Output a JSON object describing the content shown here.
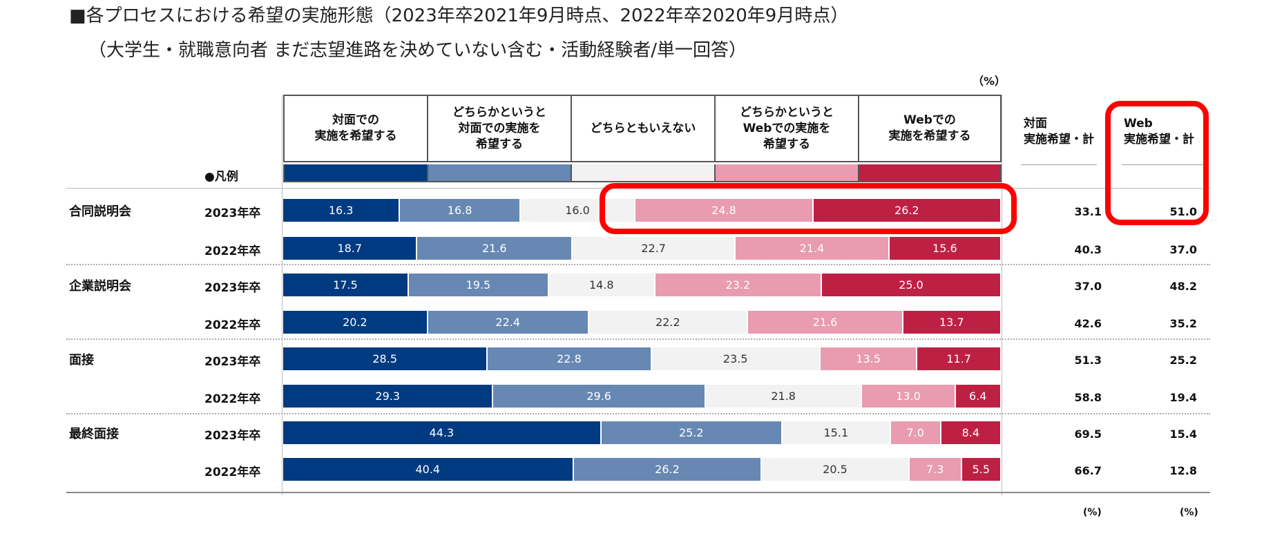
{
  "title": "■各プロセスにおける希望の実施形態（2023年卒2021年9月時点、2022年卒2020年9月時点）",
  "subtitle": "（大学生・就職意向者 まだ志望進路を決めていない含む・活動経験者/単一回答）",
  "unit_label": "（%）",
  "legend_label": "●凡例",
  "totals_headers": [
    "対面\n実施希望・計",
    "Web\n実施希望・計"
  ],
  "bottom_units": [
    "(%)",
    "(%)"
  ],
  "colors": {
    "face_to_face": "#003a80",
    "rather_face": "#6688b3",
    "neutral": "#f2f2f2",
    "rather_web": "#e99bb0",
    "web": "#be2044",
    "highlight": "#ff0000"
  },
  "chart_data": {
    "type": "bar",
    "stacked": "100%",
    "orientation": "horizontal",
    "title": "各プロセスにおける希望の実施形態（2023年卒2021年9月時点、2022年卒2020年9月時点）",
    "series": [
      {
        "name": "対面での\n実施を希望する",
        "color_key": "face_to_face"
      },
      {
        "name": "どちらかというと\n対面での実施を\n希望する",
        "color_key": "rather_face"
      },
      {
        "name": "どちらともいえない",
        "color_key": "neutral"
      },
      {
        "name": "どちらかというと\nWebでの実施を\n希望する",
        "color_key": "rather_web"
      },
      {
        "name": "Webでの\n実施を希望する",
        "color_key": "web"
      }
    ],
    "groups": [
      {
        "category": "合同説明会",
        "rows": [
          {
            "year": "2023年卒",
            "values": [
              16.3,
              16.8,
              16.0,
              24.8,
              26.2
            ],
            "face_total": 33.1,
            "web_total": 51.0
          },
          {
            "year": "2022年卒",
            "values": [
              18.7,
              21.6,
              22.7,
              21.4,
              15.6
            ],
            "face_total": 40.3,
            "web_total": 37.0
          }
        ]
      },
      {
        "category": "企業説明会",
        "rows": [
          {
            "year": "2023年卒",
            "values": [
              17.5,
              19.5,
              14.8,
              23.2,
              25.0
            ],
            "face_total": 37.0,
            "web_total": 48.2
          },
          {
            "year": "2022年卒",
            "values": [
              20.2,
              22.4,
              22.2,
              21.6,
              13.7
            ],
            "face_total": 42.6,
            "web_total": 35.2
          }
        ]
      },
      {
        "category": "面接",
        "rows": [
          {
            "year": "2023年卒",
            "values": [
              28.5,
              22.8,
              23.5,
              13.5,
              11.7
            ],
            "face_total": 51.3,
            "web_total": 25.2
          },
          {
            "year": "2022年卒",
            "values": [
              29.3,
              29.6,
              21.8,
              13.0,
              6.4
            ],
            "face_total": 58.8,
            "web_total": 19.4
          }
        ]
      },
      {
        "category": "最終面接",
        "rows": [
          {
            "year": "2023年卒",
            "values": [
              44.3,
              25.2,
              15.1,
              7.0,
              8.4
            ],
            "face_total": 69.5,
            "web_total": 15.4
          },
          {
            "year": "2022年卒",
            "values": [
              40.4,
              26.2,
              20.5,
              7.3,
              5.5
            ],
            "face_total": 66.7,
            "web_total": 12.8
          }
        ]
      }
    ],
    "unit": "%",
    "highlights": [
      "合同説明会 2023年卒 Web側（24.8, 26.2）",
      "合同説明会 2023年卒 Web実施希望・計（51.0）"
    ]
  }
}
